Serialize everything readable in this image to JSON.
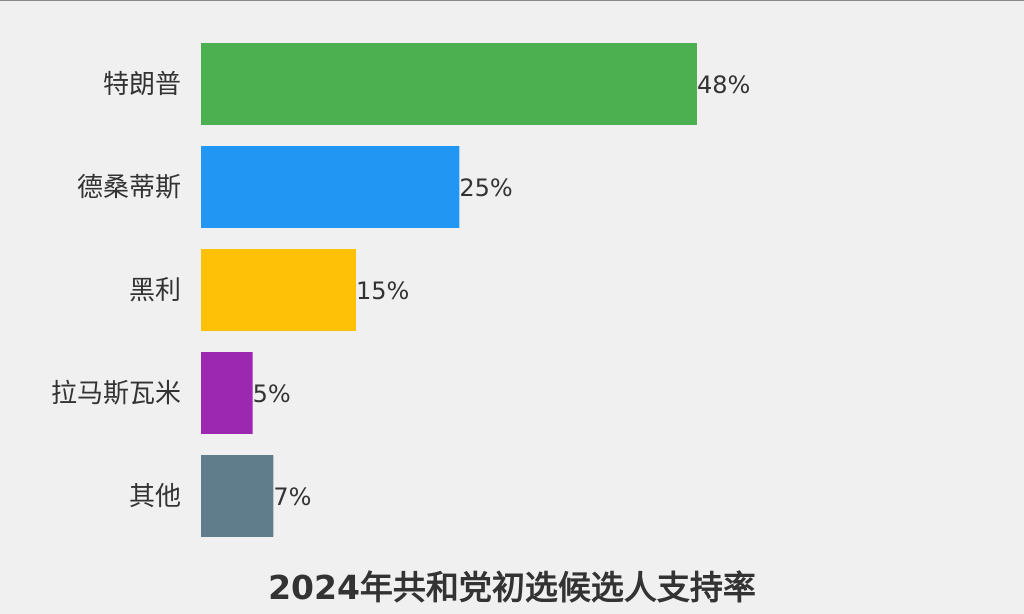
{
  "chart_data": {
    "type": "bar",
    "orientation": "horizontal",
    "title": "2024年共和党初选候选人支持率",
    "xlabel": "",
    "ylabel": "",
    "categories": [
      "特朗普",
      "德桑蒂斯",
      "黑利",
      "拉马斯瓦米",
      "其他"
    ],
    "values": [
      48,
      25,
      15,
      5,
      7
    ],
    "value_labels": [
      "48%",
      "25%",
      "15%",
      "5%",
      "7%"
    ],
    "colors": [
      "#4caf50",
      "#2196f3",
      "#ffc107",
      "#9c27b0",
      "#607d8b"
    ],
    "xlim": [
      0,
      48
    ],
    "grid": false,
    "legend": "none"
  }
}
